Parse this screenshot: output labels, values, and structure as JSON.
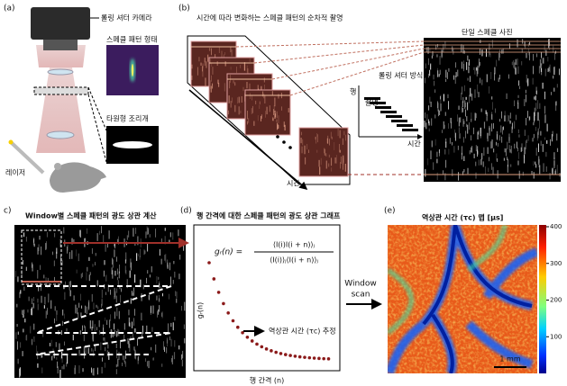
{
  "panels": {
    "a": {
      "label": "(a)",
      "camera": "롤링 셔터 카메라",
      "speckle_shape": "스페클 패턴 형태",
      "aperture": "타원형 조리개",
      "laser": "레이저"
    },
    "b": {
      "label": "(b)",
      "title": "시간에 따라 변화하는 스페클 패턴의 순차적 촬영",
      "single_image": "단일 스페클 사진",
      "rolling_shutter": "롤링 셔터 방식",
      "row": "행",
      "capture": "촬영",
      "time_axis": "시간",
      "time_arrow": "시간"
    },
    "c": {
      "label": "c)",
      "title": "Window별 스페클 패턴의 광도 상관 계산"
    },
    "d": {
      "label": "(d)",
      "title": "행 간격에 대한 스페클 패턴의 광도 상관 그래프",
      "formula_lhs": "gᵣ(n) =",
      "formula_numerator": "⟨I(i)I(i + n)⟩ⱼ",
      "formula_denominator": "⟨I(i)⟩ⱼ⟨I(i + n)⟩ⱼ",
      "y_label": "gᵣ(n)",
      "x_label": "행 간격 (n)",
      "annotation": "역상관 시간 (τc) 추정"
    },
    "scan": {
      "line1": "Window",
      "line2": "scan"
    },
    "e": {
      "label": "(e)",
      "title": "역상관 시간 (τc) 맵 [μs]",
      "colorbar_lim": [
        0,
        400
      ],
      "colorbar_ticks": [
        400,
        300,
        200,
        100
      ],
      "scale_bar": "1 mm"
    }
  }
}
